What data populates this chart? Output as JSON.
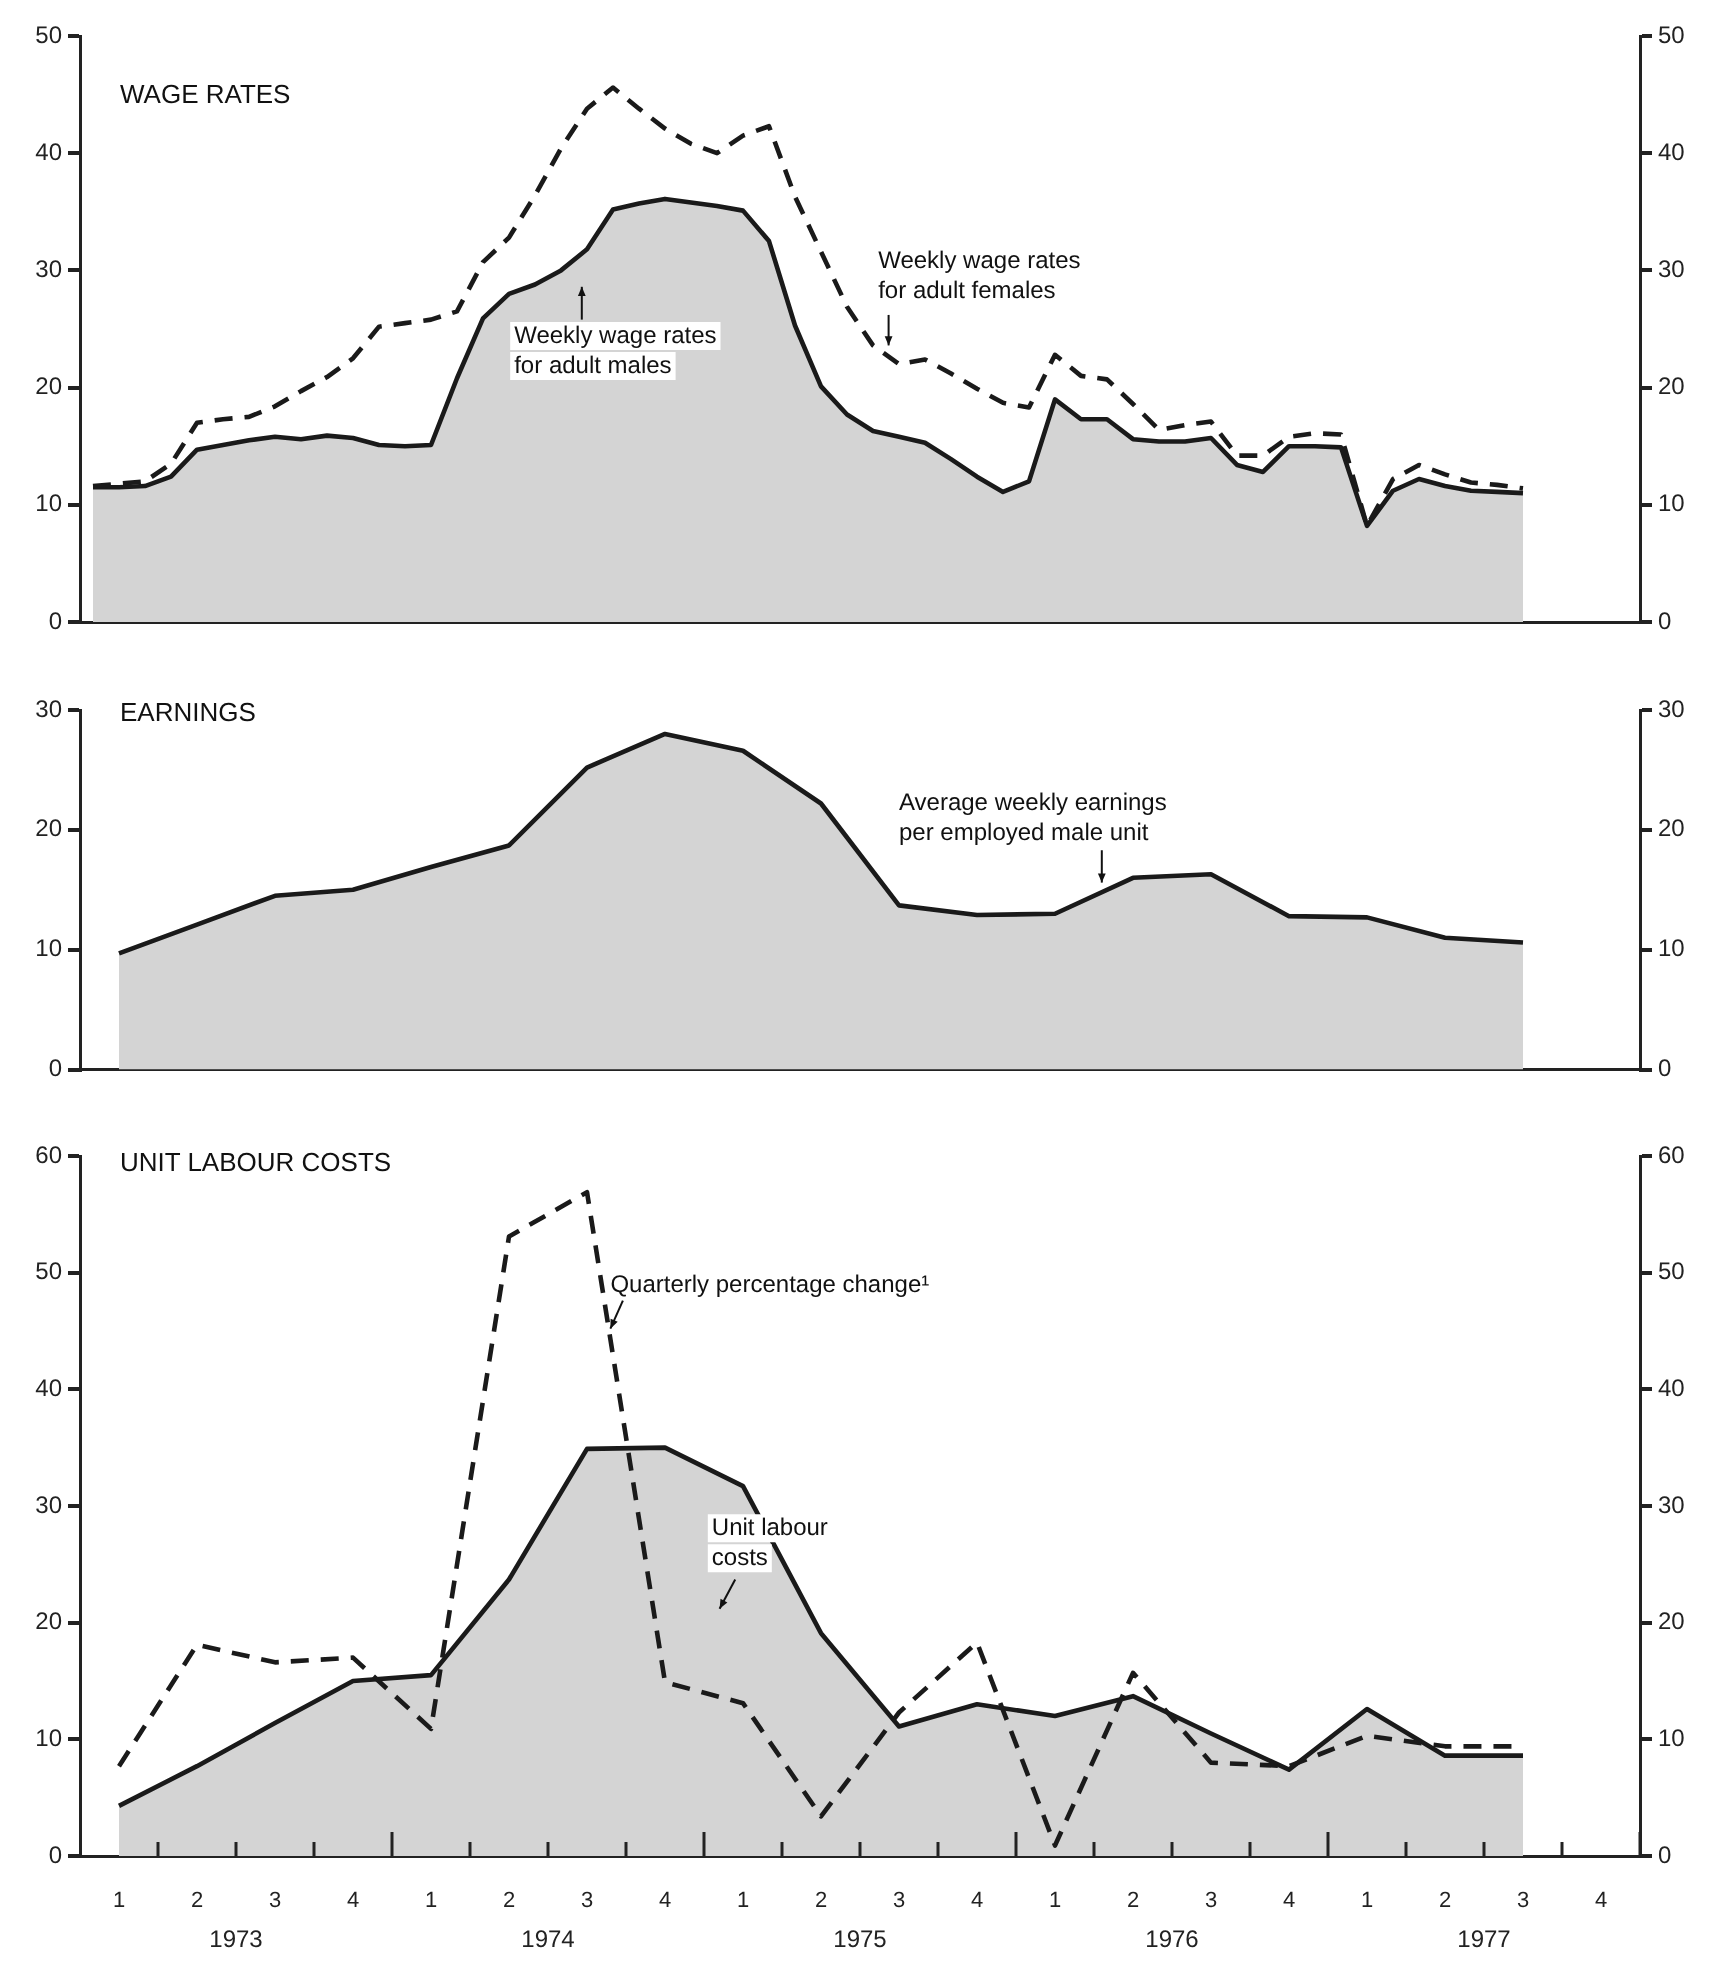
{
  "chart_data": [
    {
      "type": "area",
      "title": "WAGE RATES",
      "categories": [
        null,
        null,
        null,
        null,
        null,
        null,
        null,
        null,
        null,
        null,
        null,
        null,
        null,
        null,
        null,
        null,
        null,
        null,
        null,
        null,
        null,
        null,
        null,
        null,
        null,
        null,
        null,
        null,
        null,
        null,
        null,
        null,
        null,
        null,
        null,
        null,
        null,
        null,
        null,
        null,
        null,
        null,
        null,
        null,
        null,
        null,
        null,
        null,
        null,
        null,
        null,
        null,
        null,
        null,
        null,
        null,
        null,
        null,
        null,
        null
      ],
      "ylim": [
        0,
        50
      ],
      "yticks": [
        0,
        10,
        20,
        30,
        40,
        50
      ],
      "y2lim": [
        0,
        50
      ],
      "y2ticks": [
        0,
        10,
        20,
        30,
        40,
        50
      ],
      "tick_labels": "y",
      "series": [
        {
          "name": "Weekly wage rates for adult males",
          "type": "area",
          "color": "#1a1a1a",
          "values": [
            11.5,
            11.5,
            11.6,
            12.4,
            14.7,
            15.1,
            15.5,
            15.8,
            15.6,
            15.9,
            15.7,
            15.1,
            15.0,
            15.1,
            20.8,
            25.9,
            28.0,
            28.8,
            30.0,
            31.8,
            35.2,
            35.7,
            36.1,
            35.8,
            35.5,
            35.1,
            32.5,
            25.3,
            20.1,
            17.7,
            16.3,
            15.8,
            15.3,
            13.9,
            12.4,
            11.1,
            12.0,
            19.0,
            17.3,
            17.3,
            15.6,
            15.4,
            15.4,
            15.7,
            13.4,
            12.8,
            15.0,
            15.0,
            14.9,
            8.2,
            11.2,
            12.2,
            11.6,
            11.2,
            11.1,
            11.0,
            null,
            null,
            null,
            null
          ]
        },
        {
          "name": "Weekly wage rates for adult females",
          "type": "line",
          "line_style": "dashed",
          "color": "#1a1a1a",
          "values": [
            11.6,
            11.8,
            12.0,
            13.5,
            17.0,
            17.3,
            17.5,
            18.4,
            19.7,
            20.9,
            22.5,
            25.2,
            25.5,
            25.8,
            26.5,
            30.7,
            32.8,
            36.4,
            40.4,
            43.8,
            45.6,
            43.8,
            42.1,
            40.8,
            40.0,
            41.5,
            42.3,
            36.3,
            31.6,
            26.9,
            23.6,
            22.0,
            22.4,
            21.2,
            19.9,
            18.7,
            18.3,
            22.8,
            21.0,
            20.7,
            18.6,
            16.4,
            16.8,
            17.1,
            14.2,
            14.2,
            15.8,
            16.1,
            16.0,
            8.2,
            12.2,
            13.4,
            12.6,
            11.9,
            11.7,
            11.4,
            null,
            null,
            null,
            null
          ]
        }
      ]
    },
    {
      "type": "area",
      "title": "EARNINGS",
      "categories": [
        null,
        null,
        null,
        null,
        null,
        null,
        null,
        null,
        null,
        null,
        null,
        null,
        null,
        null,
        null,
        null,
        null,
        null,
        null,
        null
      ],
      "ylim": [
        0,
        30
      ],
      "yticks": [
        0,
        10,
        20,
        30
      ],
      "y2lim": [
        0,
        30
      ],
      "y2ticks": [
        0,
        10,
        20,
        30
      ],
      "tick_labels": "y",
      "series": [
        {
          "name": "Average weekly earnings per employed male unit",
          "type": "area",
          "color": "#1a1a1a",
          "values": [
            9.7,
            12.1,
            14.5,
            15.0,
            16.9,
            18.7,
            25.2,
            28.0,
            26.6,
            22.2,
            13.7,
            12.9,
            13.0,
            16.0,
            16.3,
            12.8,
            12.7,
            11.0,
            10.6,
            null
          ]
        }
      ]
    },
    {
      "type": "area",
      "title": "UNIT LABOUR COSTS",
      "categories": [
        "1",
        "2",
        "3",
        "4",
        "1",
        "2",
        "3",
        "4",
        "1",
        "2",
        "3",
        "4",
        "1",
        "2",
        "3",
        "4",
        "1",
        "2",
        "3",
        "4"
      ],
      "ylim": [
        0,
        60
      ],
      "yticks": [
        0,
        10,
        20,
        30,
        40,
        50,
        60
      ],
      "y2lim": [
        0,
        60
      ],
      "y2ticks": [
        0,
        10,
        20,
        30,
        40,
        50,
        60
      ],
      "annotations": [
        "1973",
        "1974",
        "1975",
        "1976",
        "1977"
      ],
      "series": [
        {
          "name": "Unit labour costs",
          "type": "area",
          "color": "#1a1a1a",
          "values": [
            4.3,
            7.7,
            11.4,
            15.0,
            15.5,
            23.7,
            34.9,
            35.0,
            31.7,
            19.1,
            11.1,
            13.0,
            12.0,
            13.7,
            10.5,
            7.4,
            12.6,
            8.6,
            8.6,
            null
          ]
        },
        {
          "name": "Quarterly percentage change¹",
          "type": "line",
          "line_style": "dashed",
          "color": "#1a1a1a",
          "values": [
            7.7,
            18.1,
            16.6,
            17.0,
            10.9,
            53.1,
            56.9,
            14.9,
            13.1,
            3.4,
            12.3,
            18.3,
            0.9,
            15.7,
            8.0,
            7.7,
            10.3,
            9.4,
            9.4,
            null
          ]
        }
      ]
    }
  ]
}
